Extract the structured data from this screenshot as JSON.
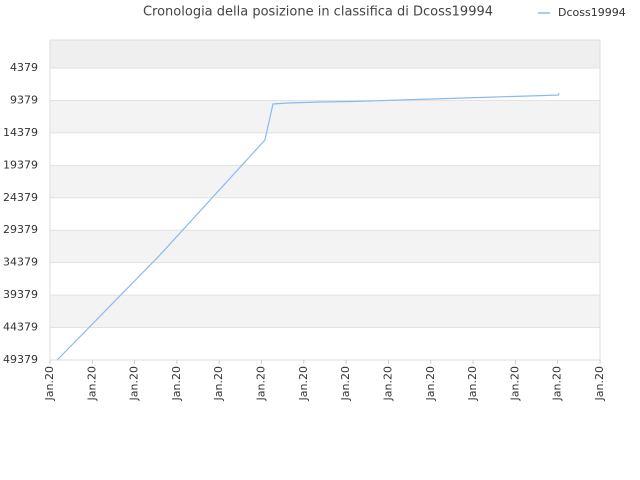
{
  "chart_data": {
    "type": "line",
    "title": "Cronologia della posizione in classifica di Dcoss19994",
    "x": [
      0.17,
      2.6,
      5.08,
      5.27,
      5.63,
      6.38,
      7.14,
      7.9,
      8.65,
      9.41,
      10.16,
      10.92,
      11.68,
      12.01,
      12.03
    ],
    "series": [
      {
        "name": "Dcoss19994",
        "color": "#88bbee",
        "values": [
          49379,
          33192,
          15473,
          9926,
          9770,
          9620,
          9540,
          9390,
          9230,
          9080,
          8920,
          8770,
          8620,
          8540,
          8230
        ]
      }
    ],
    "xlim": [
      0,
      13
    ],
    "xticks": [
      {
        "value": 0,
        "label": "Jan.20"
      },
      {
        "value": 1,
        "label": "Jan.20"
      },
      {
        "value": 2,
        "label": "Jan.20"
      },
      {
        "value": 3,
        "label": "Jan.20"
      },
      {
        "value": 4,
        "label": "Jan.20"
      },
      {
        "value": 5,
        "label": "Jan.20"
      },
      {
        "value": 6,
        "label": "Jan.20"
      },
      {
        "value": 7,
        "label": "Jan.20"
      },
      {
        "value": 8,
        "label": "Jan.20"
      },
      {
        "value": 9,
        "label": "Jan.20"
      },
      {
        "value": 10,
        "label": "Jan.20"
      },
      {
        "value": 11,
        "label": "Jan.20"
      },
      {
        "value": 12,
        "label": "Jan.20"
      },
      {
        "value": 13,
        "label": "Jan.20"
      }
    ],
    "ylim": [
      49379,
      64
    ],
    "yticks": [
      4379,
      9379,
      14379,
      19379,
      24379,
      29379,
      34379,
      39379,
      44379,
      49379
    ],
    "grid": true,
    "legend": "top-right"
  }
}
